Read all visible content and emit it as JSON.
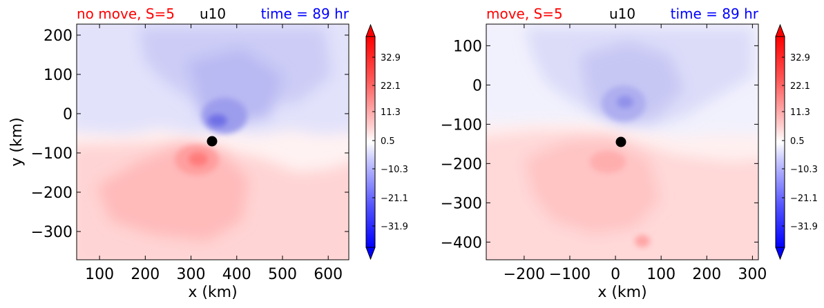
{
  "colors": {
    "left_title_color": "#ff0000",
    "center_title_color": "#000000",
    "right_title_color": "#0000ff",
    "marker_color": "#000000",
    "colormap": [
      "#0000ff",
      "#ffffff",
      "#ff0000"
    ]
  },
  "colorbar": {
    "ticks": [
      "32.9",
      "22.1",
      "11.3",
      "0.5",
      "−10.3",
      "−21.1",
      "−31.9"
    ],
    "extend": "both"
  },
  "chart_data": [
    {
      "type": "heatmap",
      "title_left": "no move, S=5",
      "title_center": "u10",
      "title_right": "time = 89 hr",
      "xlabel": "x (km)",
      "ylabel": "y (km)",
      "xlim": [
        50,
        645
      ],
      "ylim": [
        -372,
        228
      ],
      "xticks": [
        100,
        200,
        300,
        400,
        500,
        600
      ],
      "yticks": [
        200,
        100,
        0,
        -100,
        -200,
        -300
      ],
      "xtick_labels": [
        "100",
        "200",
        "300",
        "400",
        "500",
        "600"
      ],
      "ytick_labels": [
        "200",
        "100",
        "0",
        "−100",
        "−200",
        "−300"
      ],
      "colorbar_ticks": [
        32.9,
        22.1,
        11.3,
        0.5,
        -10.3,
        -21.1,
        -31.9
      ],
      "center_marker": {
        "x": 348,
        "y": -70
      },
      "field_features": [
        {
          "kind": "negative_max",
          "x": 355,
          "y": -18,
          "value": -24
        },
        {
          "kind": "positive_max",
          "x": 313,
          "y": -118,
          "value": 26
        },
        {
          "kind": "positive_region",
          "x": 250,
          "y": -200,
          "value": 12
        },
        {
          "kind": "negative_region",
          "x": 360,
          "y": 60,
          "value": -12
        }
      ]
    },
    {
      "type": "heatmap",
      "title_left": "move, S=5",
      "title_center": "u10",
      "title_right": "time = 89 hr",
      "xlabel": "x (km)",
      "ylabel": "",
      "xlim": [
        -283,
        313
      ],
      "ylim": [
        -445,
        155
      ],
      "xticks": [
        -200,
        -100,
        0,
        100,
        200,
        300
      ],
      "yticks": [
        100,
        0,
        -100,
        -200,
        -300,
        -400
      ],
      "xtick_labels": [
        "−200",
        "−100",
        "0",
        "100",
        "200",
        "300"
      ],
      "ytick_labels": [
        "100",
        "0",
        "−100",
        "−200",
        "−300",
        "−400"
      ],
      "colorbar_ticks": [
        32.9,
        22.1,
        11.3,
        0.5,
        -10.3,
        -21.1,
        -31.9
      ],
      "center_marker": {
        "x": 12,
        "y": -145
      },
      "field_features": [
        {
          "kind": "negative_max",
          "x": 15,
          "y": -70,
          "value": -18
        },
        {
          "kind": "negative_region",
          "x": 20,
          "y": 0,
          "value": -12
        },
        {
          "kind": "positive_max",
          "x": -15,
          "y": -195,
          "value": 18
        },
        {
          "kind": "positive_region",
          "x": -30,
          "y": -280,
          "value": 12
        },
        {
          "kind": "positive_spot",
          "x": 58,
          "y": -400,
          "value": 16
        }
      ]
    }
  ]
}
